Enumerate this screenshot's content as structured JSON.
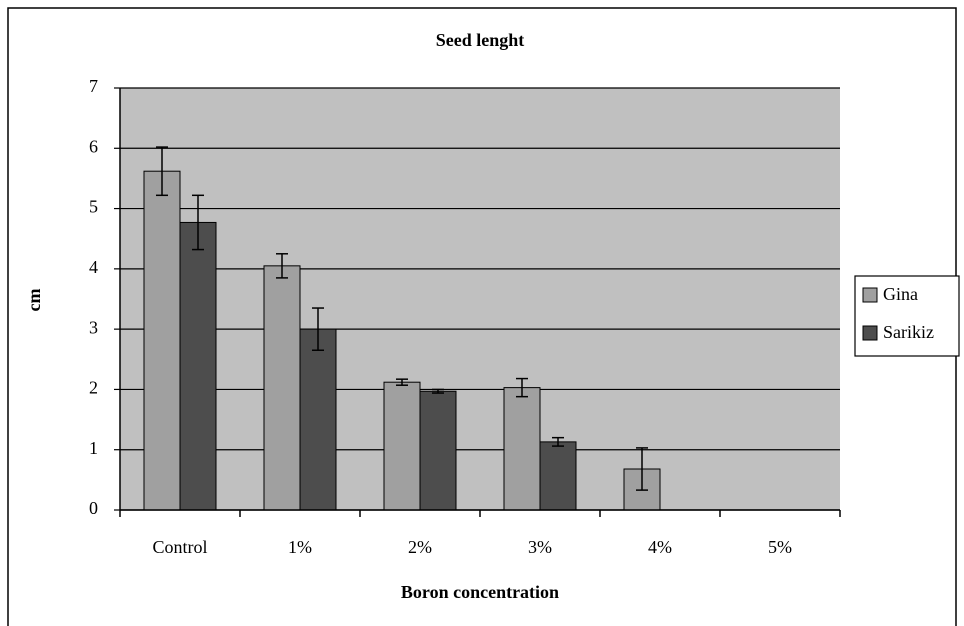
{
  "chart_data": {
    "type": "bar",
    "title": "Seed lenght",
    "x_label": "Boron concentration",
    "y_label": "cm",
    "categories": [
      "Control",
      "1%",
      "2%",
      "3%",
      "4%",
      "5%"
    ],
    "series": [
      {
        "name": "Gina",
        "color": "#a0a0a0",
        "values": [
          5.62,
          4.05,
          2.12,
          2.03,
          0.68,
          0
        ],
        "errors": [
          0.4,
          0.2,
          0.05,
          0.15,
          0.35,
          0
        ]
      },
      {
        "name": "Sarikiz",
        "color": "#4d4d4d",
        "values": [
          4.77,
          3.0,
          1.97,
          1.13,
          0,
          0
        ],
        "errors": [
          0.45,
          0.35,
          0.03,
          0.07,
          0,
          0
        ]
      }
    ],
    "ylim": [
      0,
      7
    ],
    "yticks": [
      0,
      1,
      2,
      3,
      4,
      5,
      6,
      7
    ],
    "grid": true,
    "legend": "right",
    "plot_background": "#c0c0c0"
  }
}
